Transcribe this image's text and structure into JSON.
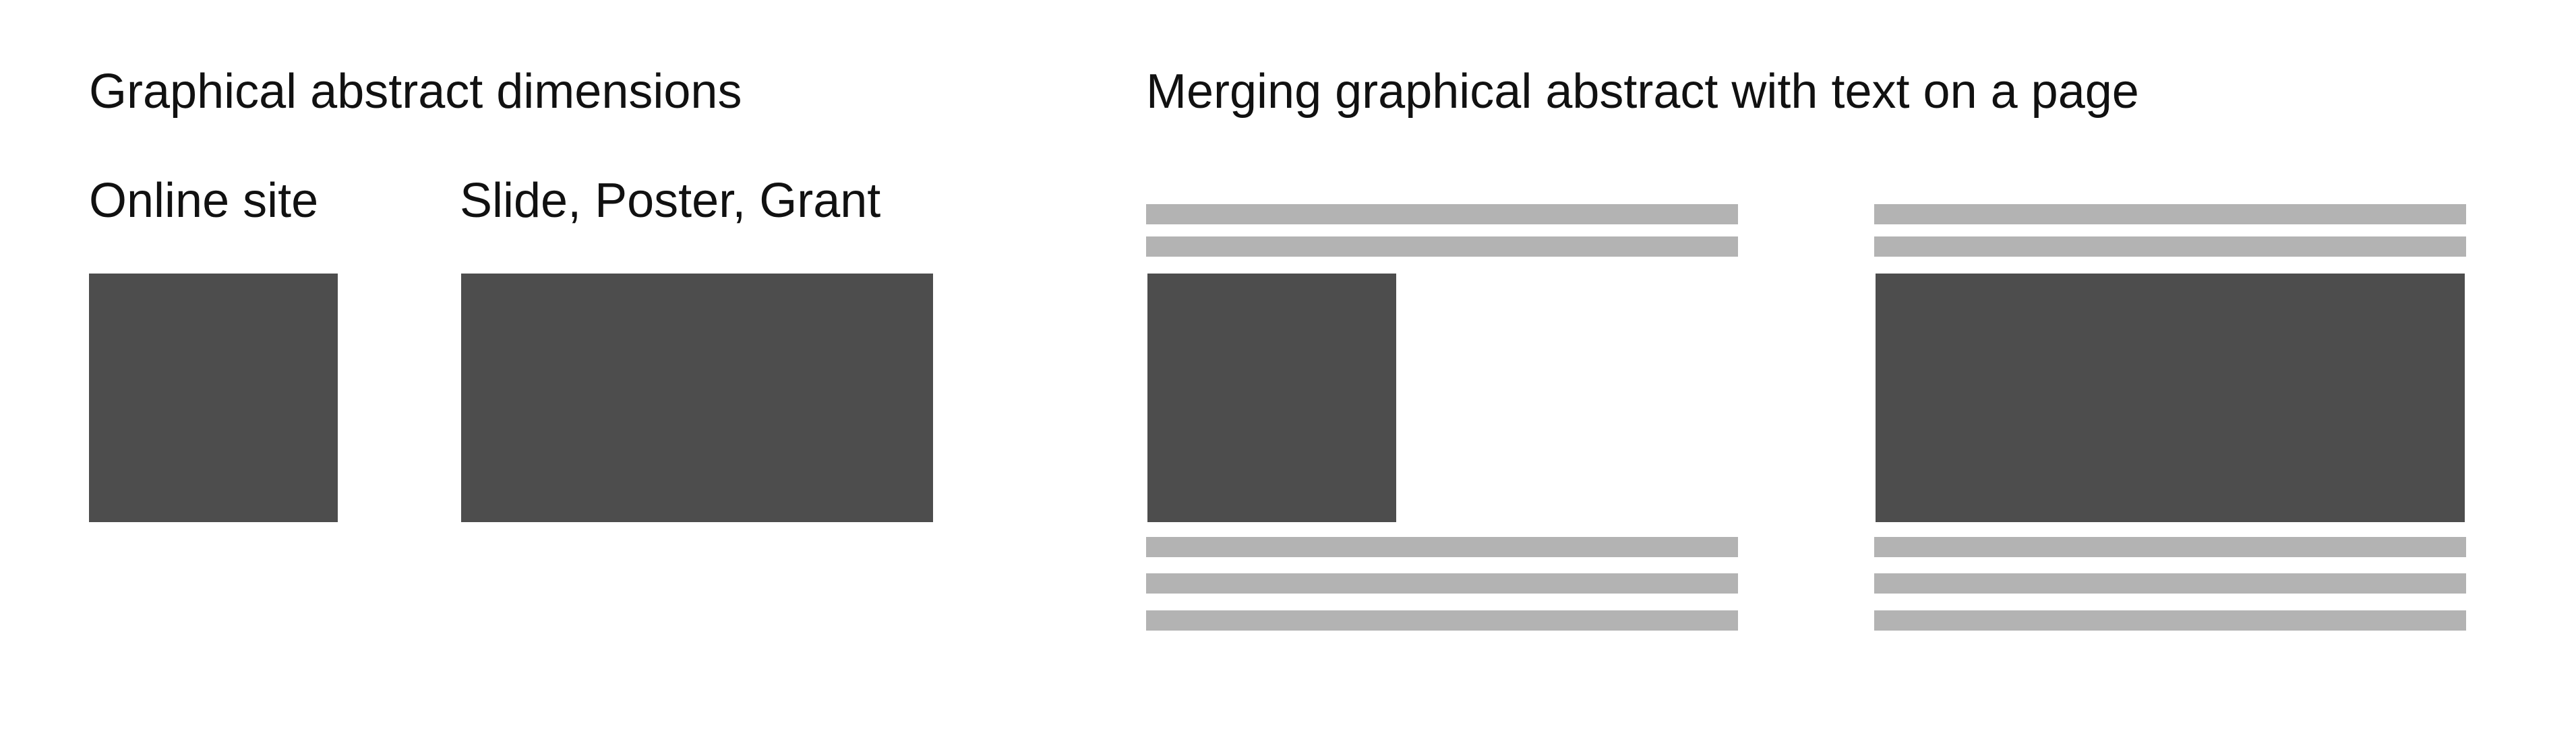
{
  "left_section": {
    "title": "Graphical abstract dimensions",
    "labels": {
      "online_site": "Online site",
      "slide_poster_grant": "Slide, Poster, Grant"
    }
  },
  "right_section": {
    "title": "Merging graphical abstract with text on a page"
  },
  "colors": {
    "graphic_block": "#4d4d4d",
    "text_line": "#b3b3b3",
    "background": "#ffffff"
  }
}
